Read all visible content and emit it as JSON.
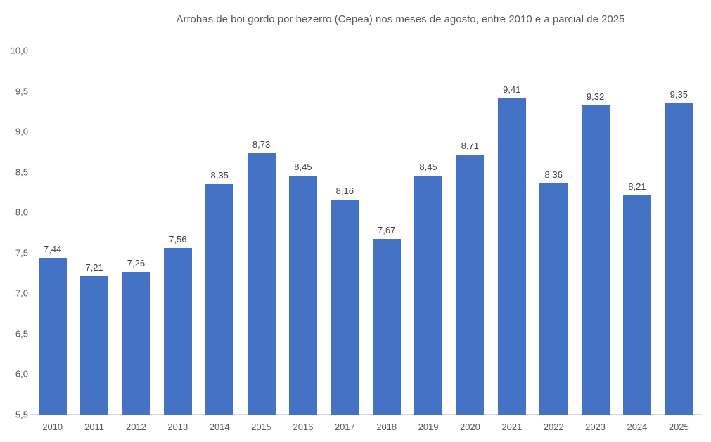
{
  "chart_data": {
    "type": "bar",
    "title": "Arrobas de boi gordo por bezerro (Cepea) nos meses de agosto, entre 2010 e a parcial de 2025",
    "categories": [
      "2010",
      "2011",
      "2012",
      "2013",
      "2014",
      "2015",
      "2016",
      "2017",
      "2018",
      "2019",
      "2020",
      "2021",
      "2022",
      "2023",
      "2024",
      "2025"
    ],
    "values": [
      7.44,
      7.21,
      7.26,
      7.56,
      8.35,
      8.73,
      8.45,
      8.16,
      7.67,
      8.45,
      8.71,
      9.41,
      8.36,
      9.32,
      8.21,
      9.35
    ],
    "value_labels": [
      "7,44",
      "7,21",
      "7,26",
      "7,56",
      "8,35",
      "8,73",
      "8,45",
      "8,16",
      "7,67",
      "8,45",
      "8,71",
      "9,41",
      "8,36",
      "9,32",
      "8,21",
      "9,35"
    ],
    "xlabel": "",
    "ylabel": "",
    "ylim": [
      5.5,
      10.0
    ],
    "ytick_step": 0.5,
    "ytick_labels": [
      "5,5",
      "6,0",
      "6,5",
      "7,0",
      "7,5",
      "8,0",
      "8,5",
      "9,0",
      "9,5",
      "10,0"
    ],
    "grid": false,
    "legend": "none",
    "data_labels": true,
    "colors": {
      "bar": "#4472C4",
      "axis_line": "#D9D9D9",
      "title_text": "#595959",
      "tick_text": "#595959",
      "data_label_text": "#404040"
    }
  }
}
